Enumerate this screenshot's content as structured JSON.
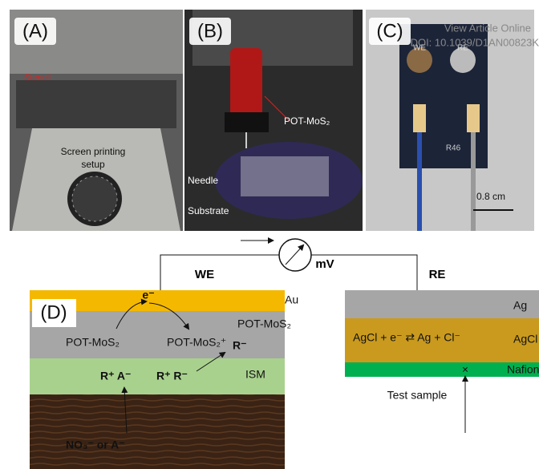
{
  "watermark": {
    "line1": "View Article Online",
    "line2": "DOI: 10.1039/D1AN00823K"
  },
  "panels": {
    "a": {
      "label": "(A)",
      "stencil": "Stencil",
      "setup": [
        "Screen printing",
        "setup"
      ]
    },
    "b": {
      "label": "(B)",
      "ink": "POT-MoS₂",
      "needle": "Needle",
      "substrate": "Substrate"
    },
    "c": {
      "label": "(C)",
      "we": "WE",
      "re": "RE",
      "code": "R46",
      "scale": "0.8 cm"
    },
    "d": {
      "label": "(D)",
      "we": "WE",
      "meter": "mV",
      "re": "RE",
      "left": {
        "au": "Au",
        "pot": "POT-MoS₂",
        "electron": "e⁻",
        "pot_left": "POT-MoS₂",
        "pot_right": "POT-MoS₂⁺",
        "r_minus": "R⁻",
        "ism": "ISM",
        "ra": "R⁺ A⁻",
        "rr": "R⁺ R⁻",
        "analyte": "NO₃⁻ or A⁻"
      },
      "right": {
        "ag": "Ag",
        "reaction": "AgCl + e⁻ ⇄ Ag + Cl⁻",
        "agcl": "AgCl",
        "nafion": "Nafion",
        "cross": "×",
        "sample": "Test sample"
      }
    }
  }
}
